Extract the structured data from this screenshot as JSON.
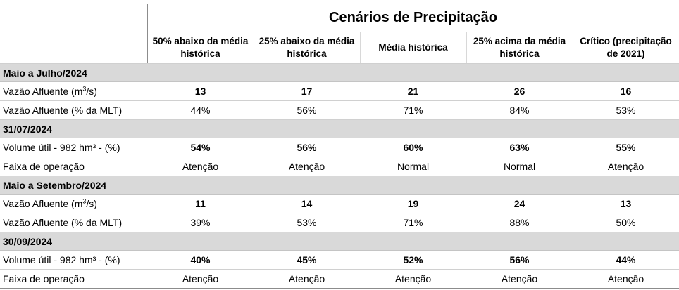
{
  "title": "Cenários de Precipitação",
  "columns": [
    "50% abaixo da média histórica",
    "25% abaixo da média histórica",
    "Média histórica",
    "25% acima da média histórica",
    "Crítico (precipitação de 2021)"
  ],
  "sections": [
    {
      "label": "Maio a Julho/2024",
      "rows": [
        {
          "label_pre": "Vazão Afluente (m",
          "label_sup": "3",
          "label_post": "/s)",
          "values": [
            "13",
            "17",
            "21",
            "26",
            "16"
          ],
          "bold": true
        },
        {
          "label": "Vazão Afluente (% da MLT)",
          "values": [
            "44%",
            "56%",
            "71%",
            "84%",
            "53%"
          ],
          "bold": false
        }
      ]
    },
    {
      "label": "31/07/2024",
      "rows": [
        {
          "label": "Volume útil - 982 hm³ - (%)",
          "values": [
            "54%",
            "56%",
            "60%",
            "63%",
            "55%"
          ],
          "bold": true
        },
        {
          "label": "Faixa de operação",
          "values": [
            "Atenção",
            "Atenção",
            "Normal",
            "Normal",
            "Atenção"
          ],
          "bold": false
        }
      ]
    },
    {
      "label": "Maio a Setembro/2024",
      "rows": [
        {
          "label_pre": "Vazão Afluente (m",
          "label_sup": "3",
          "label_post": "/s)",
          "values": [
            "11",
            "14",
            "19",
            "24",
            "13"
          ],
          "bold": true
        },
        {
          "label": "Vazão Afluente (% da MLT)",
          "values": [
            "39%",
            "53%",
            "71%",
            "88%",
            "50%"
          ],
          "bold": false
        }
      ]
    },
    {
      "label": "30/09/2024",
      "rows": [
        {
          "label": "Volume útil - 982 hm³ - (%)",
          "values": [
            "40%",
            "45%",
            "52%",
            "56%",
            "44%"
          ],
          "bold": true
        },
        {
          "label": "Faixa de operação",
          "values": [
            "Atenção",
            "Atenção",
            "Atenção",
            "Atenção",
            "Atenção"
          ],
          "bold": false
        }
      ]
    }
  ]
}
